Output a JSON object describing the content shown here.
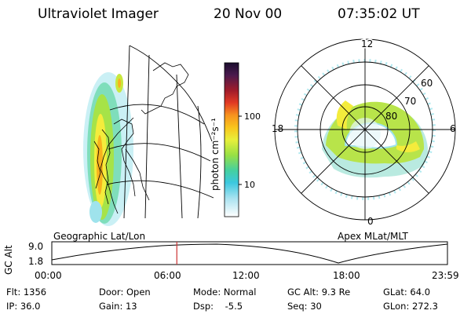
{
  "header": {
    "instrument": "Ultraviolet Imager",
    "date": "20 Nov 00",
    "time": "07:35:02 UT"
  },
  "geo_panel": {
    "label": "Geographic Lat/Lon"
  },
  "colorbar": {
    "label": "photon cm⁻²s⁻¹",
    "tick_labels": [
      "100",
      "10"
    ],
    "colors": [
      "#1a0d2e",
      "#3c1a4d",
      "#6b1f4a",
      "#a01c2a",
      "#d8232a",
      "#f04a1f",
      "#f7921e",
      "#f9c51d",
      "#f6ee3a",
      "#d2ef3d",
      "#98e044",
      "#4bd36a",
      "#2ccab0",
      "#43c7e0",
      "#96dcef",
      "#dbf0f6",
      "#ffffff"
    ]
  },
  "polar_panel": {
    "label": "Apex MLat/MLT",
    "mlt_labels": [
      "12",
      "18",
      "6",
      "0"
    ],
    "lat_labels": [
      "60",
      "70",
      "80"
    ]
  },
  "orbit_plot": {
    "ylabel": "GC Alt",
    "y_ticks": [
      "9.0",
      "1.8"
    ],
    "x_ticks": [
      "00:00",
      "06:00",
      "12:00",
      "18:00",
      "23:59"
    ],
    "current_time_fraction": 0.316
  },
  "info": {
    "row1": [
      {
        "key": "Flt:",
        "value": "1356"
      },
      {
        "key": "Door:",
        "value": "Open"
      },
      {
        "key": "Mode:",
        "value": "Normal"
      },
      {
        "key": "GC Alt:",
        "value": "9.3 Re"
      },
      {
        "key": "GLat:",
        "value": "64.0"
      }
    ],
    "row2": [
      {
        "key": "IP:",
        "value": "36.0"
      },
      {
        "key": "Gain:",
        "value": "13"
      },
      {
        "key": "Dsp:",
        "value": "-5.5"
      },
      {
        "key": "Seq:",
        "value": "30"
      },
      {
        "key": "GLon:",
        "value": "272.3"
      }
    ]
  }
}
